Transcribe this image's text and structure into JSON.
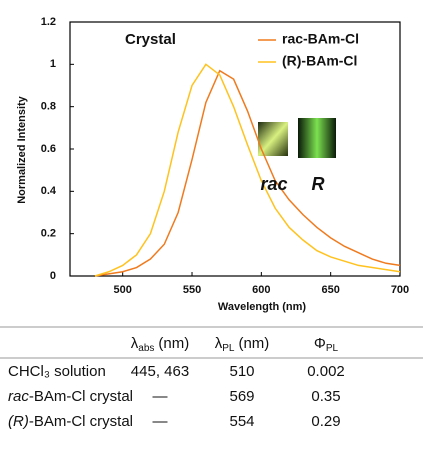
{
  "chart_data": {
    "type": "line",
    "x_label": "Wavelength (nm)",
    "y_label": "Normalized Intensity",
    "annotations": [
      "Crystal",
      "rac",
      "R"
    ],
    "x": [
      480,
      490,
      500,
      510,
      520,
      530,
      540,
      550,
      560,
      570,
      580,
      590,
      600,
      610,
      620,
      630,
      640,
      650,
      660,
      670,
      680,
      690,
      700
    ],
    "series": [
      {
        "name": "rac-BAm-Cl",
        "color": "#f07a1e",
        "values": [
          0,
          0.01,
          0.02,
          0.04,
          0.08,
          0.15,
          0.3,
          0.55,
          0.82,
          0.97,
          0.93,
          0.78,
          0.6,
          0.45,
          0.36,
          0.29,
          0.23,
          0.18,
          0.14,
          0.11,
          0.08,
          0.06,
          0.05
        ]
      },
      {
        "name": "(R)-BAm-Cl",
        "color": "#ffc21e",
        "values": [
          0,
          0.02,
          0.05,
          0.1,
          0.2,
          0.4,
          0.68,
          0.9,
          1.0,
          0.95,
          0.8,
          0.62,
          0.45,
          0.32,
          0.23,
          0.17,
          0.12,
          0.09,
          0.07,
          0.05,
          0.04,
          0.03,
          0.02
        ]
      }
    ],
    "xlim": [
      462,
      700
    ],
    "xticks": [
      500,
      550,
      600,
      650,
      700
    ],
    "ylim": [
      0,
      1.2
    ],
    "yticks": [
      0,
      0.2,
      0.4,
      0.6,
      0.8,
      1,
      1.2
    ],
    "legend": "upper right"
  },
  "table": {
    "headers": [
      [
        "λ",
        "abs",
        "(nm)"
      ],
      [
        "λ",
        "PL",
        "(nm)"
      ],
      [
        "Φ",
        "PL"
      ]
    ],
    "rows": [
      [
        [
          "CHCl₃ solution"
        ],
        "445, 463",
        "510",
        "0.002"
      ],
      [
        [
          "rac",
          "-BAm-Cl crystal"
        ],
        "—",
        "569",
        "0.35"
      ],
      [
        [
          "(R)",
          "-BAm-Cl crystal"
        ],
        "—",
        "554",
        "0.29"
      ]
    ]
  }
}
